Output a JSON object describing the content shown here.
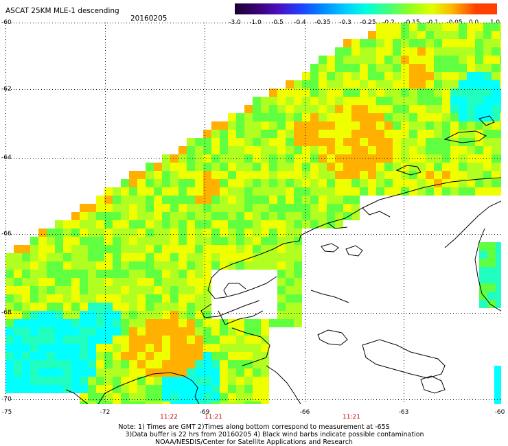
{
  "header": {
    "title": "ASCAT 25KM MLE-1 descending",
    "date": "20160205"
  },
  "colorbar": {
    "labels": [
      "-3.0",
      "-1.0",
      "-0.5",
      "-0.4",
      "-0.35",
      "-0.3",
      "-0.25",
      "-0.2",
      "-0.15",
      "-0.1",
      "-0.05",
      "0.0",
      "1.0"
    ],
    "colors": [
      "#1a0030",
      "#3a0070",
      "#4a10c0",
      "#2040ff",
      "#0088ff",
      "#00c8ff",
      "#00ffe0",
      "#40ff80",
      "#90ff20",
      "#e0ff00",
      "#ffb000",
      "#ff4000"
    ]
  },
  "map": {
    "lat_labels": [
      "-60",
      "-62",
      "-64",
      "-66",
      "-68",
      "-70"
    ],
    "lon_labels": [
      "-75",
      "-72",
      "-69",
      "-66",
      "-63",
      "-60"
    ],
    "time_labels": [
      "11:22",
      "11:21",
      "11:21"
    ],
    "palette": {
      "orange": "#ffb000",
      "yellow": "#f0ff00",
      "lime": "#b0ff20",
      "green": "#60ff40",
      "aqua": "#20ffc0",
      "cyan": "#00ffff",
      "coastline": "#000000",
      "grid": "#000000"
    }
  },
  "footer": {
    "note1": "Note: 1) Times are GMT 2)Times along bottom correspond to measurement at -65S",
    "note2": "3)Data buffer is 22 hrs from 20160205 4) Black wind barbs indicate possible contamination",
    "note3": "NOAA/NESDIS/Center for Satellite Applications and Research"
  }
}
